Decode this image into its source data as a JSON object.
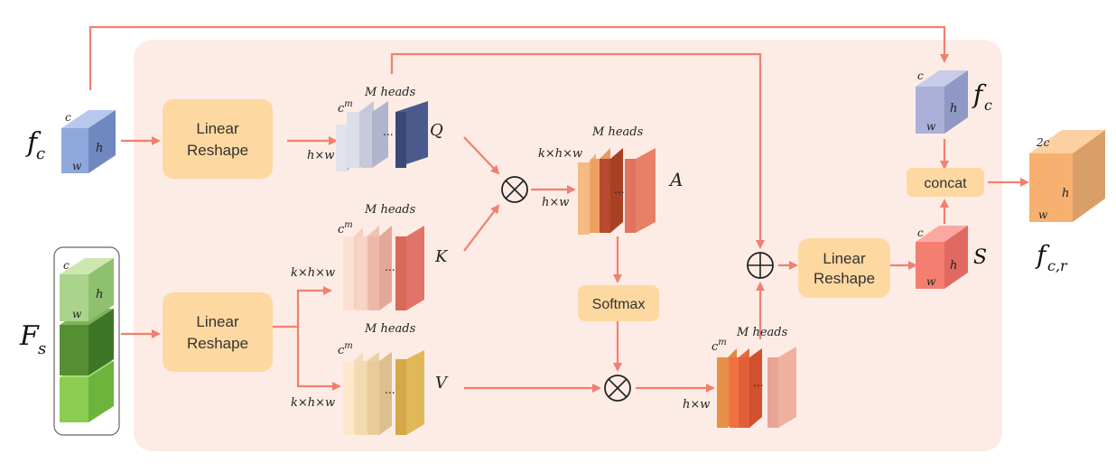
{
  "labels": {
    "fc_left": "f",
    "fc_left_sub": "c",
    "fs": "F",
    "fs_sub": "s",
    "fc_right": "f",
    "fc_right_sub": "c",
    "fcr": "f",
    "fcr_sub": "c,r",
    "q": "Q",
    "k": "K",
    "v": "V",
    "a": "A",
    "s": "S"
  },
  "boxes": {
    "linear_reshape_1": [
      "Linear",
      "Reshape"
    ],
    "linear_reshape_2": [
      "Linear",
      "Reshape"
    ],
    "linear_reshape_3": [
      "Linear",
      "Reshape"
    ],
    "softmax": "Softmax",
    "concat": "concat"
  },
  "tensor_labels": {
    "c": "c",
    "h": "h",
    "w": "w",
    "two_c": "2c",
    "m_heads": "M heads",
    "cm": "c",
    "cm_sup": "m",
    "hxw": "h×w",
    "khxw": "k×h×w",
    "dots": "..."
  },
  "colors": {
    "background_panel": "#fdece6",
    "arrow": "#f08070",
    "box_fill": "#fdd8a0",
    "q_dark": "#4a5a8c",
    "k_dark": "#e07468",
    "v_dark": "#e0b858",
    "a_main": "#b84a30",
    "concat_out": "#f8b070"
  }
}
